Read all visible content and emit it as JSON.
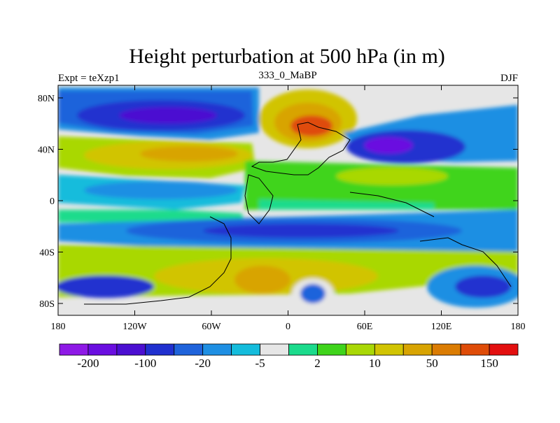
{
  "title": "Height perturbation at 500 hPa (in m)",
  "left_string": "Expt = teXzp1",
  "center_string": "333_0_MaBP",
  "right_string": "DJF",
  "y_ticks": [
    "80N",
    "40N",
    "0",
    "40S",
    "80S"
  ],
  "x_ticks": [
    "180",
    "120W",
    "60W",
    "0",
    "60E",
    "120E",
    "180"
  ],
  "colorbar": {
    "colors": [
      "#8e19e6",
      "#6a0ee0",
      "#4b0fd1",
      "#2030cf",
      "#1f63db",
      "#1e8fe3",
      "#14bcdc",
      "#e6e6e6",
      "#1bdb8c",
      "#3fd41b",
      "#a9d806",
      "#d1c403",
      "#d8a402",
      "#db7c03",
      "#df4c08",
      "#e30f0f"
    ],
    "labels": [
      "-200",
      "-100",
      "-20",
      "-5",
      "2",
      "10",
      "50",
      "150"
    ]
  }
}
